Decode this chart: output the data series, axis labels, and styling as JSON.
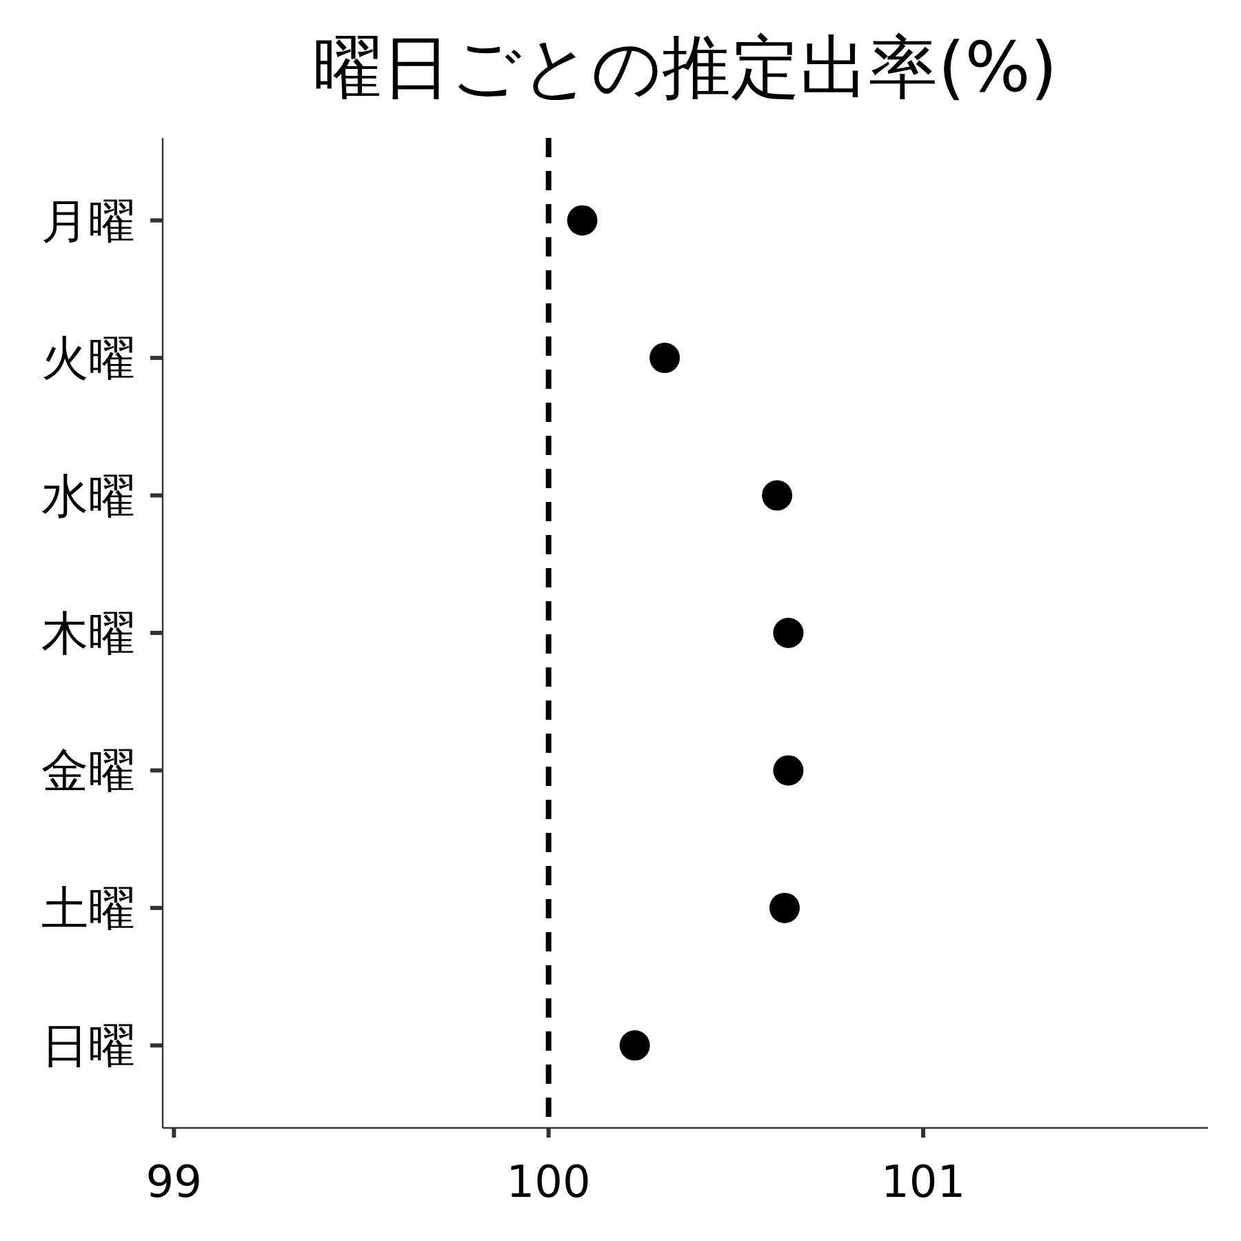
{
  "chart_data": {
    "type": "scatter",
    "title": "曜日ごとの推定出率(%)",
    "orientation": "horizontal",
    "marker": "circle",
    "categories": [
      "月曜",
      "火曜",
      "水曜",
      "木曜",
      "金曜",
      "土曜",
      "日曜"
    ],
    "series": [
      {
        "color": "#000000",
        "values": [
          100.09,
          100.31,
          100.61,
          100.64,
          100.64,
          100.63,
          100.23
        ]
      }
    ],
    "xlim": [
      98.97,
      101.76
    ],
    "xticks": [
      99,
      100,
      101
    ],
    "ref_lines": [
      {
        "axis": "x",
        "value": 100,
        "color": "#000000",
        "line_style": "dashed"
      }
    ]
  }
}
